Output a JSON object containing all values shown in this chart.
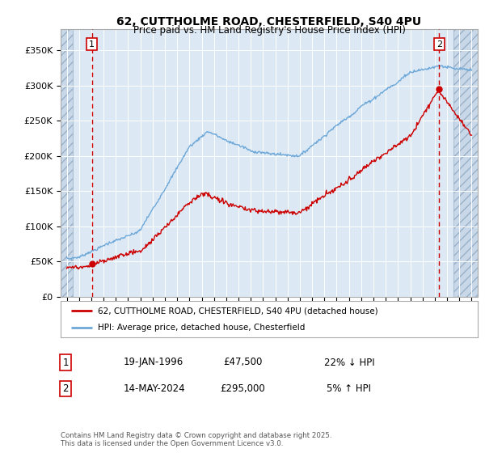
{
  "title_line1": "62, CUTTHOLME ROAD, CHESTERFIELD, S40 4PU",
  "title_line2": "Price paid vs. HM Land Registry's House Price Index (HPI)",
  "xlim_start": 1993.5,
  "xlim_end": 2027.5,
  "ylim_min": 0,
  "ylim_max": 380000,
  "yticks": [
    0,
    50000,
    100000,
    150000,
    200000,
    250000,
    300000,
    350000
  ],
  "ytick_labels": [
    "£0",
    "£50K",
    "£100K",
    "£150K",
    "£200K",
    "£250K",
    "£300K",
    "£350K"
  ],
  "hpi_color": "#6ea8d8",
  "price_color": "#cc0000",
  "vline_color": "#cc0000",
  "marker1_date": 1996.05,
  "marker1_price": 47500,
  "marker2_date": 2024.37,
  "marker2_price": 295000,
  "annotation1_label": "1",
  "annotation2_label": "2",
  "legend_label1": "62, CUTTHOLME ROAD, CHESTERFIELD, S40 4PU (detached house)",
  "legend_label2": "HPI: Average price, detached house, Chesterfield",
  "footnote_line1": "Contains HM Land Registry data © Crown copyright and database right 2025.",
  "footnote_line2": "This data is licensed under the Open Government Licence v3.0.",
  "table_row1_label": "1",
  "table_row1_date": "19-JAN-1996",
  "table_row1_price": "£47,500",
  "table_row1_hpi": "22% ↓ HPI",
  "table_row2_label": "2",
  "table_row2_date": "14-MAY-2024",
  "table_row2_price": "£295,000",
  "table_row2_hpi": "5% ↑ HPI",
  "bg_main": "#dce9f5",
  "bg_hatch": "#c8d8e8",
  "bg_white": "#ffffff",
  "hatch_left_end": 1994.5,
  "hatch_right_start": 2025.5
}
